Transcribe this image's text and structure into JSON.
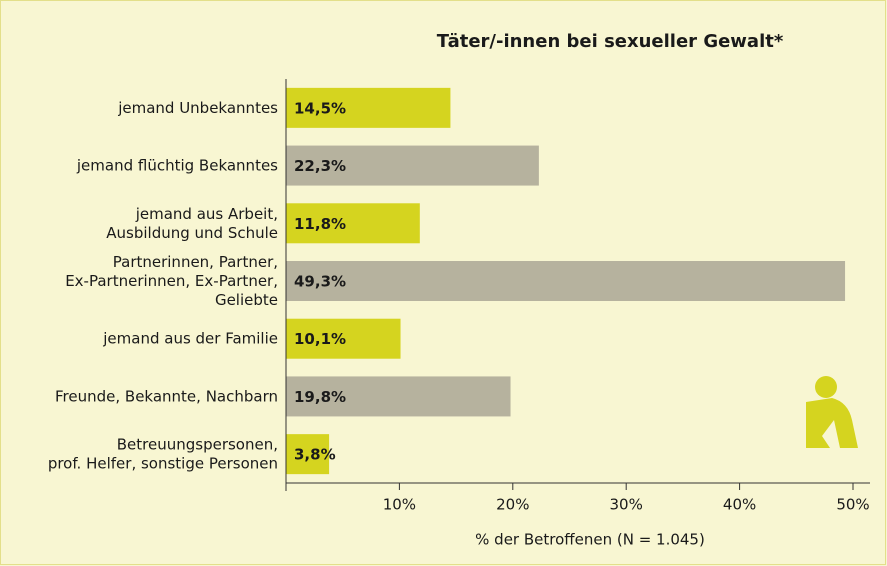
{
  "chart_data": {
    "type": "barh",
    "title": "Täter/-innen bei sexueller Gewalt*",
    "xlabel": "% der Betroffenen (N = 1.045)",
    "categories": [
      "jemand Unbekanntes",
      "jemand flüchtig Bekanntes",
      "jemand aus Arbeit,\nAusbildung und Schule",
      "Partnerinnen, Partner,\nEx-Partnerinnen, Ex-Partner,\nGeliebte",
      "jemand aus der Familie",
      "Freunde, Bekannte, Nachbarn",
      "Betreuungspersonen,\nprof. Helfer, sonstige Personen"
    ],
    "values": [
      14.5,
      22.3,
      11.8,
      49.3,
      10.1,
      19.8,
      3.8
    ],
    "value_labels": [
      "14,5%",
      "22,3%",
      "11,8%",
      "49,3%",
      "10,1%",
      "19,8%",
      "3,8%"
    ],
    "colors": [
      "#d5d41f",
      "#b6b29e",
      "#d5d41f",
      "#b6b29e",
      "#d5d41f",
      "#b6b29e",
      "#d5d41f"
    ],
    "xlim": [
      0,
      51.5
    ],
    "xticks": [
      {
        "value": 10,
        "label": "10%"
      },
      {
        "value": 20,
        "label": "20%"
      },
      {
        "value": 30,
        "label": "30%"
      },
      {
        "value": 40,
        "label": "40%"
      },
      {
        "value": 50,
        "label": "50%"
      }
    ]
  }
}
